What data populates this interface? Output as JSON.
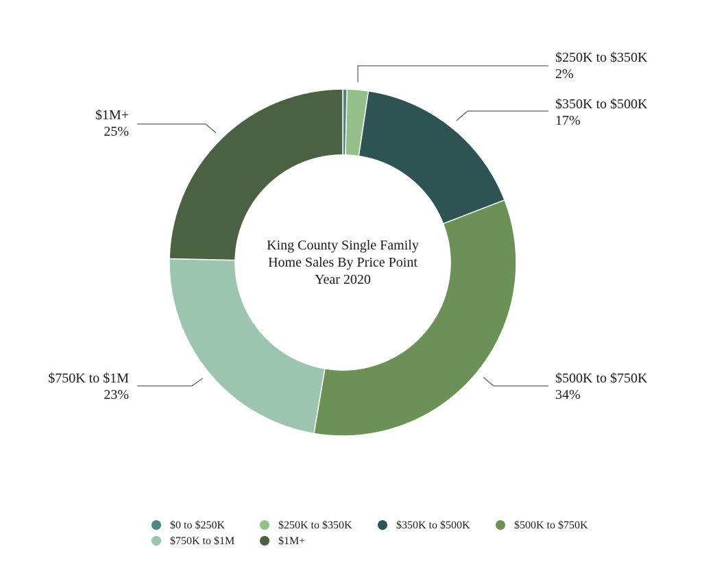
{
  "chart_data": {
    "type": "pie",
    "title_lines": [
      "King County Single Family",
      "Home Sales By Price Point",
      "Year 2020"
    ],
    "categories": [
      "$0 to $250K",
      "$250K to $350K",
      "$350K to $500K",
      "$500K to $750K",
      "$750K to $1M",
      "$1M+"
    ],
    "values": [
      0.4,
      2,
      17,
      34,
      23,
      25
    ],
    "value_labels": [
      "",
      "2%",
      "17%",
      "34%",
      "23%",
      "25%"
    ],
    "colors": [
      "#4a8880",
      "#94bf8a",
      "#2d5452",
      "#6b9156",
      "#9dc4af",
      "#4b6242"
    ],
    "legend_position": "bottom"
  }
}
